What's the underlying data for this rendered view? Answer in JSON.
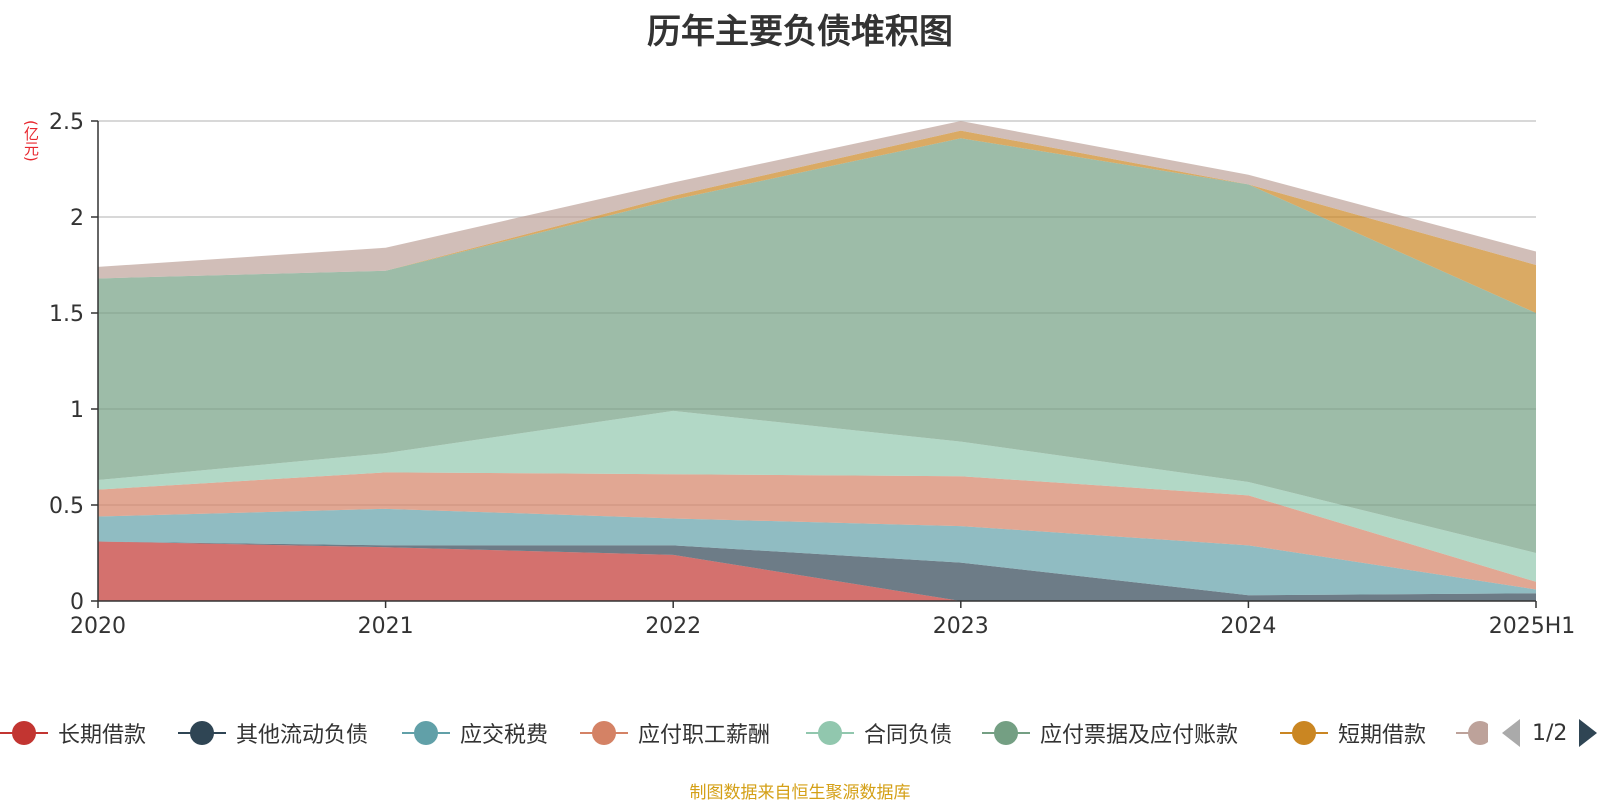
{
  "title": "历年主要负债堆积图",
  "unit": "(亿元)",
  "source": "制图数据来自恒生聚源数据库",
  "legend_pager": "1/2",
  "chart_data": {
    "type": "area",
    "stacked": true,
    "title": "历年主要负债堆积图",
    "ylabel": "(亿元)",
    "categories": [
      "2020",
      "2021",
      "2022",
      "2023",
      "2024",
      "2025H1"
    ],
    "ylim": [
      0,
      2.5
    ],
    "yticks": [
      0,
      0.5,
      1,
      1.5,
      2,
      2.5
    ],
    "ytick_labels": [
      "0",
      "0.5",
      "1",
      "1.5",
      "2",
      "2.5"
    ],
    "grid": true,
    "legend_position": "bottom",
    "series": [
      {
        "name": "长期借款",
        "color": "#c23531",
        "values": [
          0.31,
          0.28,
          0.24,
          0.0,
          0.0,
          0.0
        ]
      },
      {
        "name": "其他流动负债",
        "color": "#2f4554",
        "values": [
          0.0,
          0.01,
          0.05,
          0.2,
          0.03,
          0.04
        ]
      },
      {
        "name": "应交税费",
        "color": "#61a0a8",
        "values": [
          0.13,
          0.19,
          0.14,
          0.19,
          0.26,
          0.02
        ]
      },
      {
        "name": "应付职工薪酬",
        "color": "#d48265",
        "values": [
          0.14,
          0.19,
          0.23,
          0.26,
          0.26,
          0.04
        ]
      },
      {
        "name": "合同负债",
        "color": "#91c7ae",
        "values": [
          0.05,
          0.1,
          0.33,
          0.18,
          0.07,
          0.15
        ]
      },
      {
        "name": "应付票据及应付账款",
        "color": "#749f83",
        "values": [
          1.05,
          0.95,
          1.1,
          1.58,
          1.55,
          1.25
        ]
      },
      {
        "name": "短期借款",
        "color": "#ca8622",
        "values": [
          0.0,
          0.0,
          0.02,
          0.04,
          0.0,
          0.25
        ]
      },
      {
        "name": "",
        "color": "#bda29a",
        "values": [
          0.06,
          0.12,
          0.07,
          0.05,
          0.05,
          0.07
        ]
      }
    ]
  }
}
